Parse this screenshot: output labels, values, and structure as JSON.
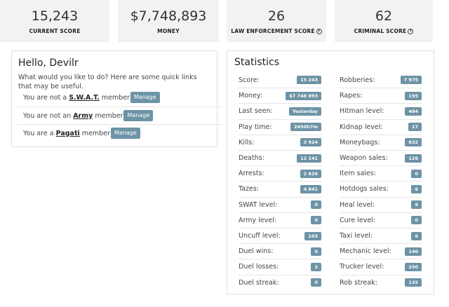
{
  "top_cards": [
    {
      "value": "15,243",
      "label": "CURRENT SCORE",
      "help": false
    },
    {
      "value": "$7,748,893",
      "label": "MONEY",
      "help": false
    },
    {
      "value": "26",
      "label": "LAW ENFORCEMENT SCORE",
      "help": true
    },
    {
      "value": "62",
      "label": "CRIMINAL SCORE",
      "help": true
    }
  ],
  "hello": {
    "title": "Hello, Devilr",
    "description": "What would you like to do? Here are some quick links that may be useful.",
    "rows": [
      {
        "prefix": "You are not a",
        "org": "S.W.A.T.",
        "suffix": "member",
        "button": "Manage"
      },
      {
        "prefix": "You are not an",
        "org": "Army",
        "suffix": "member",
        "button": "Manage"
      },
      {
        "prefix": "You are a",
        "org": "Pagati",
        "suffix": "member",
        "button": "Manage"
      }
    ]
  },
  "stats": {
    "title": "Statistics",
    "left": [
      {
        "label": "Score:",
        "value": "15 243"
      },
      {
        "label": "Money:",
        "value": "$7 748 893"
      },
      {
        "label": "Last seen:",
        "value": "Yesterday"
      },
      {
        "label": "Play time:",
        "value": "2450h7m"
      },
      {
        "label": "Kills:",
        "value": "3 924"
      },
      {
        "label": "Deaths:",
        "value": "12 141"
      },
      {
        "label": "Arrests:",
        "value": "2 626"
      },
      {
        "label": "Tazes:",
        "value": "4 841"
      },
      {
        "label": "SWAT level:",
        "value": "0"
      },
      {
        "label": "Army level:",
        "value": "0"
      },
      {
        "label": "Uncuff level:",
        "value": "103"
      },
      {
        "label": "Duel wins:",
        "value": "0"
      },
      {
        "label": "Duel losses:",
        "value": "2"
      },
      {
        "label": "Duel streak:",
        "value": "0"
      }
    ],
    "right": [
      {
        "label": "Robberies:",
        "value": "7 975"
      },
      {
        "label": "Rapes:",
        "value": "195"
      },
      {
        "label": "Hitman level:",
        "value": "484"
      },
      {
        "label": "Kidnap level:",
        "value": "17"
      },
      {
        "label": "Moneybags:",
        "value": "832"
      },
      {
        "label": "Weapon sales:",
        "value": "126"
      },
      {
        "label": "Item sales:",
        "value": "0"
      },
      {
        "label": "Hotdogs sales:",
        "value": "6"
      },
      {
        "label": "Heal level:",
        "value": "6"
      },
      {
        "label": "Cure level:",
        "value": "0"
      },
      {
        "label": "Taxi level:",
        "value": "6"
      },
      {
        "label": "Mechanic level:",
        "value": "140"
      },
      {
        "label": "Trucker level:",
        "value": "250"
      },
      {
        "label": "Rob streak:",
        "value": "135"
      }
    ],
    "badge_color": "#6d93a6"
  }
}
